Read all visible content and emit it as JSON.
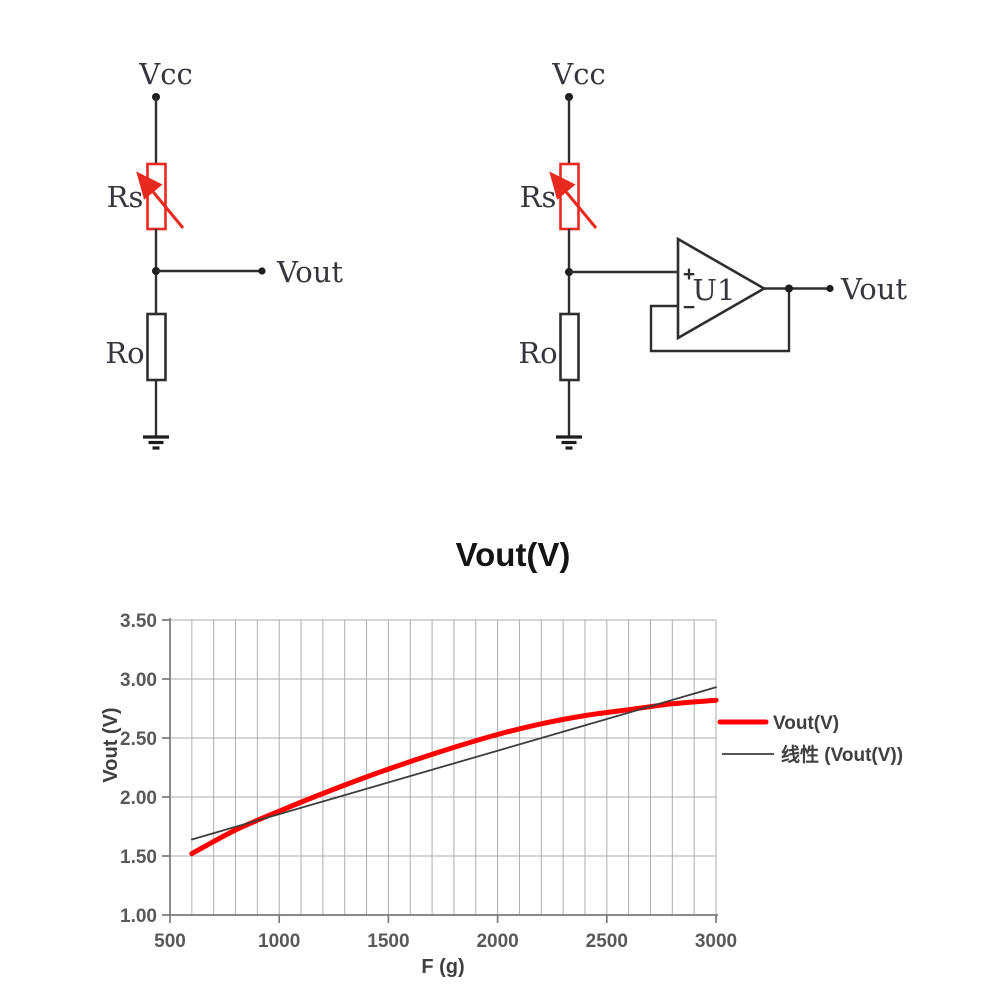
{
  "colors": {
    "resistor_red": "#e8291f",
    "wire_dark": "#2e2e2e",
    "series_red": "#ff0000",
    "series_gray": "#3d3d3d",
    "tick_text": "#595959"
  },
  "circuits": {
    "left": {
      "vcc_label": "Vcc",
      "rs_label": "Rs",
      "r0_label": "Ro",
      "vout_label": "Vout"
    },
    "right": {
      "vcc_label": "Vcc",
      "rs_label": "Rs",
      "r0_label": "Ro",
      "vout_label": "Vout",
      "opamp_label": "U1",
      "plus_label": "+",
      "minus_label": "−"
    }
  },
  "chart_data": {
    "type": "line",
    "title": "Vout(V)",
    "xlabel": "F (g)",
    "ylabel": "Vout (V)",
    "xlim": [
      500,
      3000
    ],
    "ylim": [
      1.0,
      3.5
    ],
    "x_major_ticks": [
      500,
      1000,
      1500,
      2000,
      2500,
      3000
    ],
    "x_minor_step": 100,
    "y_ticks": [
      1.0,
      1.5,
      2.0,
      2.5,
      3.0,
      3.5
    ],
    "grid": true,
    "legend_position": "right",
    "series": [
      {
        "name": "Vout(V)",
        "color": "#ff0000",
        "width": 5,
        "smooth": true,
        "x": [
          600,
          800,
          1000,
          1200,
          1400,
          1600,
          1800,
          2000,
          2200,
          2400,
          2600,
          2800,
          3000
        ],
        "y": [
          1.52,
          1.72,
          1.88,
          2.03,
          2.17,
          2.3,
          2.42,
          2.53,
          2.62,
          2.69,
          2.74,
          2.79,
          2.82
        ]
      },
      {
        "name": "线性 (Vout(V))",
        "color": "#3d3d3d",
        "width": 1.8,
        "smooth": false,
        "x": [
          600,
          3000
        ],
        "y": [
          1.64,
          2.93
        ]
      }
    ]
  }
}
